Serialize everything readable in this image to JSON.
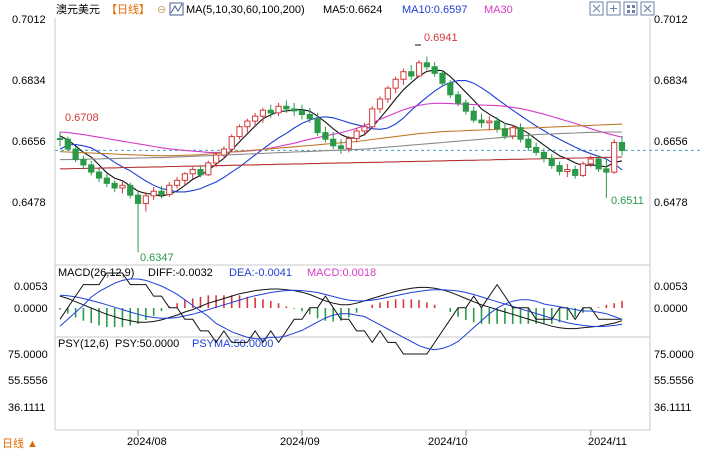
{
  "header": {
    "instrument": "澳元美元",
    "period": "【日线】",
    "ma_label": "MA(5,10,30,60,100,200)",
    "ma5": "MA5:0.6624",
    "ma10": "MA10:0.6597",
    "ma30": "MA30",
    "colors": {
      "instrument": "#111111",
      "period": "#e06a00",
      "ma5": "#111111",
      "ma10": "#1f3fd6",
      "ma30": "#d63cc8",
      "ma60": "#c07a2a",
      "ma100": "#8a8a8a",
      "ma200": "#b83030"
    }
  },
  "toolbar": {
    "icons": [
      "expand-icon",
      "collapse-icon",
      "grid-icon",
      "close-icon"
    ]
  },
  "price_axis": {
    "ticks": [
      "0.7012",
      "0.6834",
      "0.6656",
      "0.6478"
    ],
    "range": [
      0.6308,
      0.7052
    ],
    "last_price": 0.6656
  },
  "annotations": {
    "high": "0.6941",
    "low": "0.6347",
    "left": "0.6708",
    "recent_low": "0.6511"
  },
  "macd": {
    "label": "MACD(26,12,9)",
    "diff": "DIFF:-0.0032",
    "dea": "DEA:-0.0041",
    "macd": "MACD:0.0018",
    "ticks": [
      "0.0053",
      "0.0000"
    ],
    "colors": {
      "diff": "#111111",
      "dea": "#1f3fd6",
      "macd": "#d63cc8"
    }
  },
  "psy": {
    "label": "PSY(12,6)",
    "psy": "PSY:50.0000",
    "psyma": "PSYMA:50.0000",
    "ticks": [
      "75.0000",
      "55.5556",
      "36.1111"
    ],
    "colors": {
      "psy": "#111111",
      "psyma": "#1f3fd6"
    }
  },
  "x_axis": {
    "labels": [
      "2024/08",
      "2024/09",
      "2024/10",
      "2024/11"
    ]
  },
  "footer": {
    "period_select": "日线 ▲"
  },
  "chart_data": {
    "type": "candlestick",
    "candles": [
      [
        0.6692,
        0.6712,
        0.6668,
        0.669
      ],
      [
        0.669,
        0.6698,
        0.6655,
        0.666
      ],
      [
        0.666,
        0.6668,
        0.662,
        0.6628
      ],
      [
        0.6628,
        0.664,
        0.66,
        0.6612
      ],
      [
        0.6612,
        0.6625,
        0.658,
        0.659
      ],
      [
        0.659,
        0.6605,
        0.656,
        0.6572
      ],
      [
        0.6572,
        0.6585,
        0.6545,
        0.6556
      ],
      [
        0.6556,
        0.6565,
        0.653,
        0.6542
      ],
      [
        0.6542,
        0.656,
        0.6525,
        0.655
      ],
      [
        0.655,
        0.6558,
        0.651,
        0.652
      ],
      [
        0.652,
        0.6535,
        0.6347,
        0.6495
      ],
      [
        0.6495,
        0.653,
        0.647,
        0.6518
      ],
      [
        0.6518,
        0.6545,
        0.6505,
        0.6532
      ],
      [
        0.6532,
        0.6548,
        0.651,
        0.6522
      ],
      [
        0.6522,
        0.656,
        0.6515,
        0.655
      ],
      [
        0.655,
        0.6575,
        0.654,
        0.6565
      ],
      [
        0.6565,
        0.659,
        0.655,
        0.6585
      ],
      [
        0.6585,
        0.6605,
        0.657,
        0.6598
      ],
      [
        0.6598,
        0.661,
        0.6575,
        0.6582
      ],
      [
        0.6582,
        0.6625,
        0.6578,
        0.6618
      ],
      [
        0.6618,
        0.665,
        0.6605,
        0.6642
      ],
      [
        0.6642,
        0.6668,
        0.663,
        0.666
      ],
      [
        0.666,
        0.6705,
        0.665,
        0.6698
      ],
      [
        0.6698,
        0.6735,
        0.669,
        0.6728
      ],
      [
        0.6728,
        0.6752,
        0.671,
        0.6745
      ],
      [
        0.6745,
        0.677,
        0.673,
        0.676
      ],
      [
        0.676,
        0.6785,
        0.674,
        0.6778
      ],
      [
        0.6778,
        0.6795,
        0.6755,
        0.677
      ],
      [
        0.677,
        0.68,
        0.676,
        0.679
      ],
      [
        0.679,
        0.6808,
        0.677,
        0.6782
      ],
      [
        0.6782,
        0.68,
        0.676,
        0.6776
      ],
      [
        0.6776,
        0.6795,
        0.675,
        0.6765
      ],
      [
        0.6765,
        0.6785,
        0.674,
        0.6752
      ],
      [
        0.6752,
        0.677,
        0.67,
        0.671
      ],
      [
        0.671,
        0.6728,
        0.668,
        0.669
      ],
      [
        0.669,
        0.6712,
        0.666,
        0.667
      ],
      [
        0.667,
        0.669,
        0.6645,
        0.6662
      ],
      [
        0.6662,
        0.67,
        0.665,
        0.6692
      ],
      [
        0.6692,
        0.6725,
        0.668,
        0.6715
      ],
      [
        0.6715,
        0.674,
        0.67,
        0.6728
      ],
      [
        0.6728,
        0.679,
        0.672,
        0.6782
      ],
      [
        0.6782,
        0.682,
        0.677,
        0.6812
      ],
      [
        0.6812,
        0.6852,
        0.68,
        0.6845
      ],
      [
        0.6845,
        0.688,
        0.683,
        0.6872
      ],
      [
        0.6872,
        0.6905,
        0.6855,
        0.6895
      ],
      [
        0.6895,
        0.6915,
        0.687,
        0.6882
      ],
      [
        0.6882,
        0.693,
        0.6878,
        0.6922
      ],
      [
        0.6922,
        0.6941,
        0.69,
        0.691
      ],
      [
        0.691,
        0.6925,
        0.688,
        0.689
      ],
      [
        0.689,
        0.69,
        0.685,
        0.686
      ],
      [
        0.686,
        0.687,
        0.6815,
        0.6825
      ],
      [
        0.6825,
        0.6835,
        0.679,
        0.68
      ],
      [
        0.68,
        0.681,
        0.6765,
        0.6775
      ],
      [
        0.6775,
        0.679,
        0.674,
        0.6748
      ],
      [
        0.6748,
        0.6768,
        0.6725,
        0.674
      ],
      [
        0.674,
        0.676,
        0.6718,
        0.6745
      ],
      [
        0.6745,
        0.6758,
        0.671,
        0.6722
      ],
      [
        0.6722,
        0.674,
        0.669,
        0.67
      ],
      [
        0.67,
        0.6732,
        0.669,
        0.6725
      ],
      [
        0.6725,
        0.6738,
        0.668,
        0.669
      ],
      [
        0.669,
        0.6705,
        0.6655,
        0.6665
      ],
      [
        0.6665,
        0.668,
        0.664,
        0.665
      ],
      [
        0.665,
        0.6662,
        0.662,
        0.6632
      ],
      [
        0.6632,
        0.6645,
        0.66,
        0.661
      ],
      [
        0.661,
        0.6622,
        0.658,
        0.6592
      ],
      [
        0.6592,
        0.6615,
        0.6575,
        0.6598
      ],
      [
        0.6598,
        0.661,
        0.657,
        0.658
      ],
      [
        0.658,
        0.6622,
        0.6575,
        0.6615
      ],
      [
        0.6615,
        0.664,
        0.6605,
        0.663
      ],
      [
        0.663,
        0.664,
        0.659,
        0.66
      ],
      [
        0.66,
        0.663,
        0.6511,
        0.659
      ],
      [
        0.659,
        0.669,
        0.6585,
        0.668
      ],
      [
        0.668,
        0.67,
        0.664,
        0.6656
      ]
    ],
    "series": [
      {
        "name": "MA5",
        "values": [
          0.67,
          0.6688,
          0.667,
          0.665,
          0.6636,
          0.6612,
          0.6588,
          0.6572,
          0.6564,
          0.6548,
          0.6532,
          0.6525,
          0.6523,
          0.6517,
          0.6523,
          0.6533,
          0.655,
          0.6568,
          0.658,
          0.6596,
          0.6614,
          0.6632,
          0.6656,
          0.6682,
          0.6706,
          0.673,
          0.6752,
          0.6764,
          0.6774,
          0.6776,
          0.6779,
          0.678,
          0.6775,
          0.676,
          0.6742,
          0.6722,
          0.6704,
          0.6694,
          0.6694,
          0.6704,
          0.6726,
          0.6754,
          0.6782,
          0.6812,
          0.684,
          0.6862,
          0.6882,
          0.6896,
          0.69,
          0.6898,
          0.688,
          0.6857,
          0.6832,
          0.6808,
          0.6782,
          0.6766,
          0.6752,
          0.6738,
          0.6732,
          0.6722,
          0.6708,
          0.669,
          0.6672,
          0.6655,
          0.664,
          0.663,
          0.6618,
          0.661,
          0.6612,
          0.661,
          0.6606,
          0.662,
          0.6624
        ]
      },
      {
        "name": "MA10",
        "values": [
          0.666,
          0.6672,
          0.6674,
          0.667,
          0.6664,
          0.665,
          0.6636,
          0.662,
          0.6606,
          0.6594,
          0.6578,
          0.6563,
          0.655,
          0.654,
          0.6535,
          0.653,
          0.653,
          0.6534,
          0.654,
          0.655,
          0.656,
          0.6574,
          0.659,
          0.6606,
          0.6624,
          0.6642,
          0.666,
          0.6678,
          0.6694,
          0.6708,
          0.6724,
          0.6738,
          0.6748,
          0.6756,
          0.6758,
          0.6755,
          0.6748,
          0.674,
          0.6734,
          0.6728,
          0.6722,
          0.672,
          0.6724,
          0.6736,
          0.6754,
          0.6778,
          0.6798,
          0.6818,
          0.6836,
          0.6852,
          0.6862,
          0.6868,
          0.6868,
          0.686,
          0.6846,
          0.683,
          0.6812,
          0.6795,
          0.6778,
          0.6762,
          0.6746,
          0.673,
          0.6716,
          0.6702,
          0.669,
          0.6678,
          0.6666,
          0.6655,
          0.6646,
          0.6638,
          0.663,
          0.6615,
          0.6597
        ]
      },
      {
        "name": "MA30",
        "values": [
          0.6712,
          0.671,
          0.6707,
          0.6704,
          0.67,
          0.6696,
          0.6692,
          0.6688,
          0.6684,
          0.668,
          0.6676,
          0.6672,
          0.6668,
          0.6664,
          0.6661,
          0.6658,
          0.6656,
          0.6654,
          0.6652,
          0.665,
          0.665,
          0.665,
          0.6651,
          0.6652,
          0.6654,
          0.6656,
          0.6659,
          0.6663,
          0.6668,
          0.6673,
          0.6678,
          0.6684,
          0.669,
          0.6695,
          0.67,
          0.6705,
          0.671,
          0.6716,
          0.6723,
          0.6731,
          0.674,
          0.675,
          0.676,
          0.677,
          0.6779,
          0.6787,
          0.6793,
          0.6797,
          0.6799,
          0.6799,
          0.6798,
          0.6797,
          0.6796,
          0.6795,
          0.6794,
          0.6793,
          0.6792,
          0.679,
          0.6787,
          0.6783,
          0.6778,
          0.6772,
          0.6766,
          0.6759,
          0.6752,
          0.6745,
          0.6738,
          0.673,
          0.6722,
          0.6715,
          0.6708,
          0.6702,
          0.6696
        ]
      },
      {
        "name": "MA60",
        "values": [
          0.6652,
          0.6651,
          0.665,
          0.6649,
          0.6648,
          0.6647,
          0.6646,
          0.6645,
          0.6644,
          0.6643,
          0.6642,
          0.6641,
          0.664,
          0.664,
          0.664,
          0.664,
          0.6641,
          0.6642,
          0.6643,
          0.6645,
          0.6647,
          0.6649,
          0.6651,
          0.6653,
          0.6655,
          0.6657,
          0.6659,
          0.6661,
          0.6663,
          0.6665,
          0.6667,
          0.6669,
          0.6671,
          0.6673,
          0.6675,
          0.6677,
          0.6679,
          0.6681,
          0.6683,
          0.6686,
          0.6689,
          0.6692,
          0.6695,
          0.6698,
          0.6701,
          0.6704,
          0.6707,
          0.6709,
          0.6711,
          0.6713,
          0.6714,
          0.6715,
          0.6716,
          0.6717,
          0.6718,
          0.6719,
          0.672,
          0.6721,
          0.6722,
          0.6723,
          0.6724,
          0.6725,
          0.6726,
          0.6727,
          0.6728,
          0.6729,
          0.673,
          0.6731,
          0.6732,
          0.6733,
          0.6734,
          0.6735,
          0.6736
        ]
      },
      {
        "name": "MA100",
        "values": [
          0.6628,
          0.6628,
          0.6629,
          0.6629,
          0.663,
          0.663,
          0.6631,
          0.6631,
          0.6632,
          0.6632,
          0.6633,
          0.6633,
          0.6634,
          0.6634,
          0.6635,
          0.6636,
          0.6637,
          0.6638,
          0.6639,
          0.664,
          0.6641,
          0.6642,
          0.6643,
          0.6644,
          0.6645,
          0.6646,
          0.6647,
          0.6648,
          0.6649,
          0.665,
          0.6651,
          0.6652,
          0.6653,
          0.6654,
          0.6655,
          0.6656,
          0.6657,
          0.6658,
          0.6659,
          0.666,
          0.6662,
          0.6664,
          0.6666,
          0.6668,
          0.667,
          0.6672,
          0.6674,
          0.6676,
          0.6678,
          0.668,
          0.6682,
          0.6684,
          0.6686,
          0.6688,
          0.669,
          0.6692,
          0.6694,
          0.6696,
          0.6698,
          0.67,
          0.6702,
          0.6704,
          0.6705,
          0.6706,
          0.6707,
          0.6708,
          0.6709,
          0.671,
          0.6711,
          0.6711,
          0.6712,
          0.6712,
          0.6712
        ]
      },
      {
        "name": "MA200",
        "values": [
          0.66,
          0.66,
          0.6601,
          0.6601,
          0.6602,
          0.6602,
          0.6603,
          0.6603,
          0.6604,
          0.6604,
          0.6605,
          0.6605,
          0.6606,
          0.6606,
          0.6607,
          0.6607,
          0.6608,
          0.6608,
          0.6609,
          0.6609,
          0.661,
          0.661,
          0.6611,
          0.6611,
          0.6612,
          0.6612,
          0.6613,
          0.6613,
          0.6614,
          0.6614,
          0.6615,
          0.6615,
          0.6616,
          0.6616,
          0.6617,
          0.6617,
          0.6618,
          0.6618,
          0.6619,
          0.6619,
          0.662,
          0.662,
          0.6621,
          0.6621,
          0.6622,
          0.6622,
          0.6623,
          0.6623,
          0.6624,
          0.6624,
          0.6625,
          0.6625,
          0.6626,
          0.6626,
          0.6627,
          0.6627,
          0.6628,
          0.6628,
          0.6629,
          0.6629,
          0.663,
          0.663,
          0.6631,
          0.6631,
          0.6632,
          0.6632,
          0.6633,
          0.6633,
          0.6634,
          0.6634,
          0.6635,
          0.6635,
          0.6636
        ]
      }
    ],
    "macd_diff": [
      0.003,
      0.0024,
      0.0016,
      0.0008,
      0.0,
      -0.0008,
      -0.0016,
      -0.0022,
      -0.0028,
      -0.0032,
      -0.0036,
      -0.0036,
      -0.0034,
      -0.003,
      -0.0024,
      -0.0018,
      -0.001,
      -0.0004,
      0.0004,
      0.0012,
      0.0018,
      0.0024,
      0.003,
      0.0036,
      0.004,
      0.0044,
      0.0046,
      0.0048,
      0.0048,
      0.0046,
      0.0044,
      0.004,
      0.0034,
      0.0026,
      0.0018,
      0.0012,
      0.0008,
      0.0008,
      0.0012,
      0.0018,
      0.0024,
      0.003,
      0.0036,
      0.0042,
      0.0046,
      0.005,
      0.0052,
      0.0052,
      0.005,
      0.0046,
      0.004,
      0.0032,
      0.0024,
      0.0016,
      0.0008,
      0.0002,
      -0.0004,
      -0.001,
      -0.0016,
      -0.0022,
      -0.0028,
      -0.0034,
      -0.004,
      -0.0046,
      -0.005,
      -0.0052,
      -0.0052,
      -0.005,
      -0.0048,
      -0.0046,
      -0.0042,
      -0.0038,
      -0.0032
    ],
    "macd_dea": [
      0.0032,
      0.0031,
      0.0028,
      0.0024,
      0.0019,
      0.0014,
      0.0008,
      0.0002,
      -0.0004,
      -0.001,
      -0.0016,
      -0.0021,
      -0.0024,
      -0.0026,
      -0.0026,
      -0.0024,
      -0.002,
      -0.0016,
      -0.001,
      -0.0004,
      0.0002,
      0.0008,
      0.0014,
      0.002,
      0.0026,
      0.0031,
      0.0035,
      0.0039,
      0.0042,
      0.0044,
      0.0045,
      0.0044,
      0.0042,
      0.0039,
      0.0034,
      0.0029,
      0.0024,
      0.002,
      0.0018,
      0.0018,
      0.002,
      0.0023,
      0.0027,
      0.0031,
      0.0035,
      0.0039,
      0.0042,
      0.0045,
      0.0046,
      0.0046,
      0.0045,
      0.0043,
      0.0039,
      0.0034,
      0.0028,
      0.0022,
      0.0016,
      0.001,
      0.0004,
      -0.0002,
      -0.0008,
      -0.0014,
      -0.002,
      -0.0026,
      -0.0032,
      -0.0037,
      -0.0041,
      -0.0044,
      -0.0046,
      -0.0047,
      -0.0046,
      -0.0044,
      -0.0041
    ],
    "psy": [
      50,
      41.67,
      33.33,
      25,
      25,
      25,
      16.67,
      16.67,
      16.67,
      25,
      25,
      25,
      33.33,
      33.33,
      41.67,
      41.67,
      50,
      50,
      58.33,
      58.33,
      66.67,
      58.33,
      66.67,
      66.67,
      66.67,
      58.33,
      66.67,
      58.33,
      66.67,
      58.33,
      50,
      50,
      41.67,
      41.67,
      33.33,
      41.67,
      50,
      50,
      58.33,
      58.33,
      66.67,
      58.33,
      66.67,
      66.67,
      75,
      75,
      75,
      75,
      66.67,
      58.33,
      50,
      41.67,
      41.67,
      33.33,
      41.67,
      33.33,
      25,
      33.33,
      41.67,
      41.67,
      41.67,
      50,
      50,
      50,
      41.67,
      41.67,
      50,
      41.67,
      41.67,
      50,
      50,
      50,
      50
    ],
    "psyma": [
      55,
      50,
      45,
      40,
      34,
      30,
      27,
      24,
      22,
      21,
      21,
      22,
      24,
      26,
      29,
      32,
      36,
      40,
      44,
      48,
      53,
      56,
      59,
      61,
      63,
      64,
      64,
      63,
      63,
      62,
      60,
      58,
      55,
      52,
      49,
      47,
      46,
      46,
      47,
      48,
      51,
      54,
      57,
      60,
      63,
      66,
      69,
      71,
      72,
      71,
      69,
      66,
      61,
      56,
      51,
      46,
      42,
      39,
      37,
      36,
      36,
      37,
      39,
      40,
      41,
      42,
      43,
      44,
      44,
      45,
      46,
      48,
      50
    ],
    "x_tick_index": [
      10,
      31,
      52,
      68
    ]
  }
}
